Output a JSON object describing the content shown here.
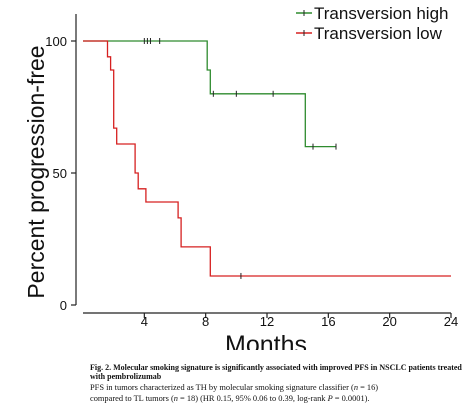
{
  "chart_data": {
    "type": "line",
    "step": true,
    "xlabel": "Months",
    "ylabel": "Percent progression-free",
    "xlim": [
      0,
      24
    ],
    "ylim": [
      0,
      100
    ],
    "xticks": [
      4,
      8,
      12,
      16,
      20,
      24
    ],
    "yticks": [
      0,
      50,
      100
    ],
    "grid": false,
    "legend_position": "top-right",
    "series": [
      {
        "name": "Transversion high",
        "color": "#2e8b2e",
        "steps": [
          [
            0,
            100
          ],
          [
            8.1,
            100
          ],
          [
            8.1,
            89
          ],
          [
            8.3,
            89
          ],
          [
            8.3,
            80
          ],
          [
            14.5,
            80
          ],
          [
            14.5,
            60
          ],
          [
            16.5,
            60
          ]
        ],
        "censors": [
          [
            4.0,
            100
          ],
          [
            4.2,
            100
          ],
          [
            4.4,
            100
          ],
          [
            5.0,
            100
          ],
          [
            8.5,
            80
          ],
          [
            10.0,
            80
          ],
          [
            12.4,
            80
          ],
          [
            15.0,
            60
          ],
          [
            16.5,
            60
          ]
        ]
      },
      {
        "name": "Transversion low",
        "color": "#d62020",
        "steps": [
          [
            0,
            100
          ],
          [
            1.6,
            100
          ],
          [
            1.6,
            94
          ],
          [
            1.8,
            94
          ],
          [
            1.8,
            89
          ],
          [
            2.0,
            89
          ],
          [
            2.0,
            67
          ],
          [
            2.2,
            67
          ],
          [
            2.2,
            61
          ],
          [
            3.4,
            61
          ],
          [
            3.4,
            50
          ],
          [
            3.6,
            50
          ],
          [
            3.6,
            44
          ],
          [
            4.1,
            44
          ],
          [
            4.1,
            39
          ],
          [
            6.2,
            39
          ],
          [
            6.2,
            33
          ],
          [
            6.4,
            33
          ],
          [
            6.4,
            22
          ],
          [
            8.3,
            22
          ],
          [
            8.3,
            11
          ],
          [
            24,
            11
          ]
        ],
        "censors": [
          [
            10.3,
            11
          ]
        ]
      }
    ]
  },
  "caption": {
    "title": "Fig. 2. Molecular smoking signature is significantly associated with improved PFS in NSCLC patients treated with pembrolizumab",
    "line1_a": "PFS in tumors characterized as TH by molecular smoking signature classifier (",
    "n1_label": "n",
    "line1_b": " = 16)",
    "line2_a": "compared to TL tumors (",
    "n2_label": "n",
    "line2_b": " = 18) (HR 0.15, 95% 0.06 to 0.39, log-rank ",
    "p_label": "P",
    "line2_c": " = 0.0001)."
  }
}
